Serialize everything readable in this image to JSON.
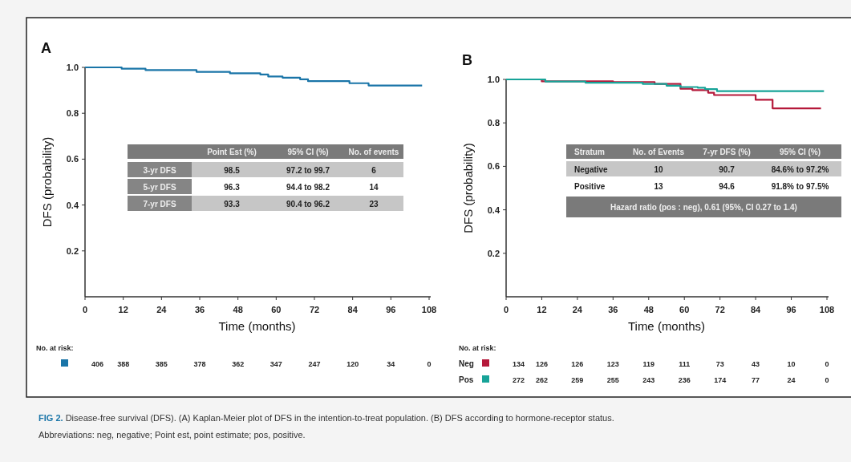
{
  "chart_data": [
    {
      "type": "step",
      "title": "A",
      "xlabel": "Time (months)",
      "ylabel": "DFS (probability)",
      "xlim": [
        0,
        108
      ],
      "xticks": [
        0,
        12,
        24,
        36,
        48,
        60,
        72,
        84,
        96,
        108
      ],
      "ylim": [
        0,
        1
      ],
      "yticks": [
        {
          "value": 0.2,
          "label": "0.2"
        },
        {
          "value": 0.4,
          "label": "0.4"
        },
        {
          "value": 0.6,
          "label": "0.6"
        },
        {
          "value": 0.8,
          "label": "0.8"
        },
        {
          "value": 1,
          "label": "1.0"
        }
      ],
      "grid": false,
      "legend": false,
      "line_style": "solid",
      "series": [
        {
          "color": "#1a75a8",
          "x": [
            0,
            11.5,
            19,
            35,
            45.5,
            55,
            57.5,
            62,
            67.5,
            70,
            83,
            89,
            105.8
          ],
          "values": [
            1,
            0.994,
            0.988,
            0.98,
            0.974,
            0.969,
            0.96,
            0.955,
            0.948,
            0.94,
            0.931,
            0.921,
            0.921
          ]
        }
      ],
      "annotations": [
        "Point Est (%)",
        "95% CI (%)",
        "No. of events",
        "3-yr DFS",
        "98.5",
        "97.2 to 99.7",
        "6",
        "5-yr DFS",
        "96.3",
        "94.4 to 98.2",
        "14",
        "7-yr DFS",
        "93.3",
        "90.4 to 96.2",
        "23",
        "No. at risk:",
        "406",
        "388",
        "385",
        "378",
        "362",
        "347",
        "247",
        "120",
        "34",
        "0",
        "FIG 2.",
        "Disease-free survival (DFS). (A) Kaplan-Meier plot of DFS in the intention-to-treat population. (B) DFS according to hormone-receptor status.",
        "Abbreviations: neg, negative; Point est, point estimate; pos, positive."
      ]
    },
    {
      "type": "step",
      "title": "B",
      "xlabel": "Time (months)",
      "ylabel": "DFS (probability)",
      "xlim": [
        0,
        108
      ],
      "xticks": [
        0,
        12,
        24,
        36,
        48,
        60,
        72,
        84,
        96,
        108
      ],
      "ylim": [
        0,
        1
      ],
      "yticks": [
        {
          "value": 0.2,
          "label": "0.2"
        },
        {
          "value": 0.4,
          "label": "0.4"
        },
        {
          "value": 0.6,
          "label": "0.6"
        },
        {
          "value": 0.8,
          "label": "0.8"
        },
        {
          "value": 1,
          "label": "1.0"
        }
      ],
      "grid": false,
      "legend": "bottom left",
      "line_style": "solid",
      "series": [
        {
          "name": "Neg",
          "color": "#b5193a",
          "x": [
            0,
            12,
            36,
            50,
            58.7,
            62.7,
            68,
            70,
            84,
            89.7,
            106
          ],
          "values": [
            1,
            0.991,
            0.988,
            0.979,
            0.957,
            0.951,
            0.939,
            0.928,
            0.906,
            0.867,
            0.867
          ]
        },
        {
          "name": "Pos",
          "color": "#17a398",
          "x": [
            0,
            13.2,
            26.7,
            46,
            54,
            58.7,
            64.5,
            67,
            71,
            107
          ],
          "values": [
            1,
            0.99,
            0.985,
            0.979,
            0.971,
            0.965,
            0.962,
            0.955,
            0.946,
            0.946
          ]
        }
      ],
      "annotations": [
        "Stratum",
        "No. of Events",
        "7-yr DFS (%)",
        "95% CI (%)",
        "Negative",
        "10",
        "90.7",
        "84.6% to 97.2%",
        "Positive",
        "13",
        "94.6",
        "91.8% to 97.5%",
        "Hazard ratio (pos : neg), 0.61 (95%, CI 0.27 to 1.4)",
        "No. at risk:",
        "134",
        "126",
        "126",
        "123",
        "119",
        "111",
        "73",
        "43",
        "10",
        "0",
        "272",
        "262",
        "259",
        "255",
        "243",
        "236",
        "174",
        "77",
        "24",
        "0"
      ]
    }
  ]
}
